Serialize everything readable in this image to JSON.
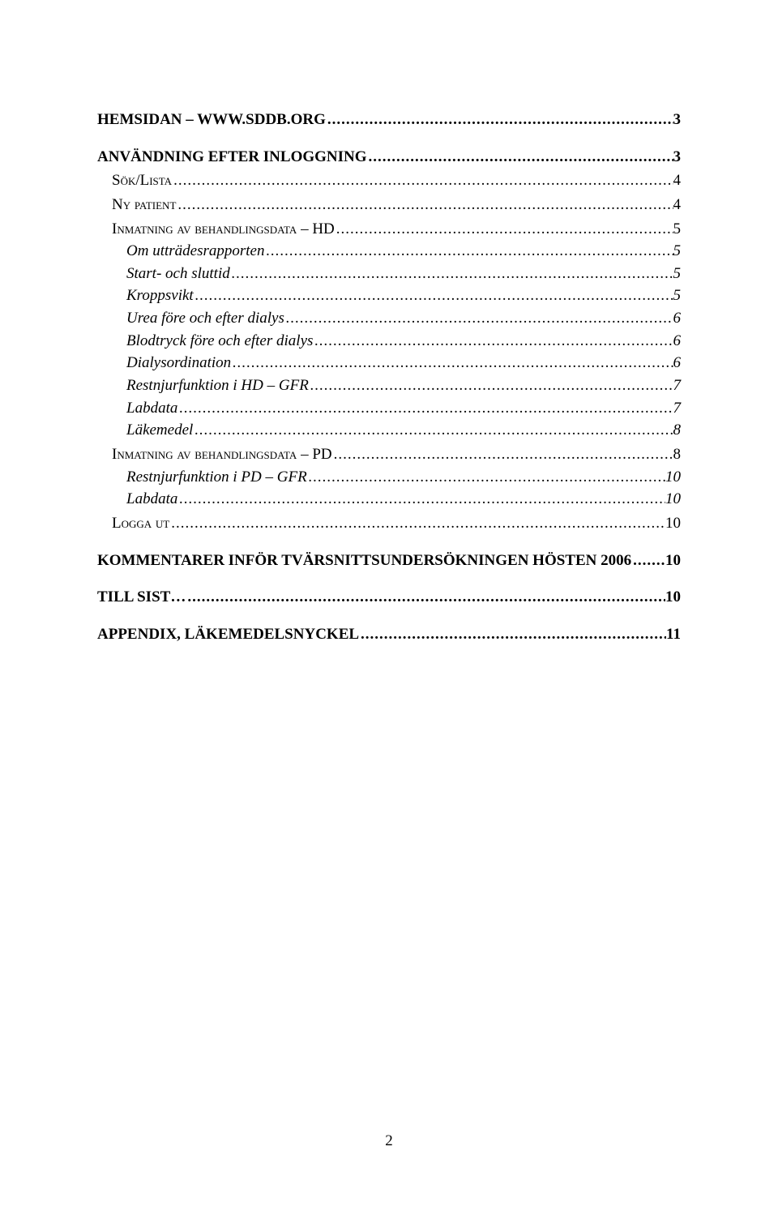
{
  "page_number": "2",
  "toc": [
    {
      "level": 1,
      "text": "HEMSIDAN – WWW.SDDB.ORG",
      "page": "3"
    },
    {
      "level": 1,
      "text": "ANVÄNDNING EFTER INLOGGNING",
      "page": "3"
    },
    {
      "level": 2,
      "text": "Sök/Lista",
      "page": "4"
    },
    {
      "level": 2,
      "text": "Ny patient",
      "page": "4"
    },
    {
      "level": 2,
      "text": "Inmatning av behandlingsdata – HD",
      "page": "5"
    },
    {
      "level": 3,
      "text": "Om utträdesrapporten",
      "page": "5"
    },
    {
      "level": 3,
      "text": "Start- och sluttid",
      "page": "5"
    },
    {
      "level": 3,
      "text": "Kroppsvikt",
      "page": "5"
    },
    {
      "level": 3,
      "text": "Urea före och efter dialys",
      "page": "6"
    },
    {
      "level": 3,
      "text": "Blodtryck före och efter dialys",
      "page": "6"
    },
    {
      "level": 3,
      "text": "Dialysordination",
      "page": "6"
    },
    {
      "level": 3,
      "text": "Restnjurfunktion i HD – GFR",
      "page": "7"
    },
    {
      "level": 3,
      "text": "Labdata",
      "page": "7"
    },
    {
      "level": 3,
      "text": "Läkemedel",
      "page": "8"
    },
    {
      "level": 2,
      "text": "Inmatning av behandlingsdata – PD",
      "page": "8"
    },
    {
      "level": 3,
      "text": "Restnjurfunktion i PD – GFR",
      "page": "10"
    },
    {
      "level": 3,
      "text": "Labdata",
      "page": "10"
    },
    {
      "level": 2,
      "text": "Logga ut",
      "page": "10"
    },
    {
      "level": 1,
      "text": "KOMMENTARER INFÖR TVÄRSNITTSUNDERSÖKNINGEN HÖSTEN 2006",
      "page": "10"
    },
    {
      "level": 1,
      "text": "TILL SIST…",
      "page": "10"
    },
    {
      "level": 1,
      "text": "APPENDIX, LÄKEMEDELSNYCKEL",
      "page": "11"
    }
  ]
}
